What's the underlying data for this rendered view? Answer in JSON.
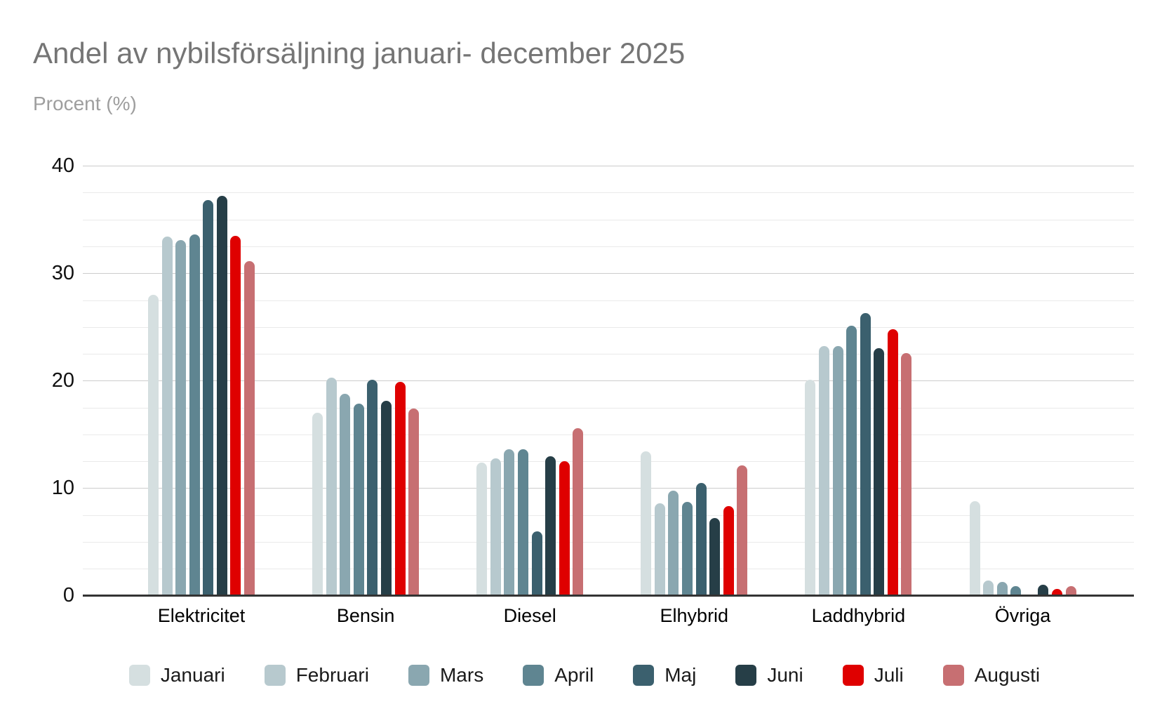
{
  "chart_data": {
    "type": "bar",
    "title": "Andel av nybilsförsäljning januari- december 2025",
    "subtitle": "Procent (%)",
    "ylabel": "Procent (%)",
    "xlabel": "",
    "categories": [
      "Elektricitet",
      "Bensin",
      "Diesel",
      "Elhybrid",
      "Laddhybrid",
      "Övriga"
    ],
    "series": [
      {
        "name": "Januari",
        "color": "#d5dfe0",
        "values": [
          28.0,
          17.0,
          12.4,
          13.4,
          20.1,
          8.8
        ]
      },
      {
        "name": "Februari",
        "color": "#b7c9ce",
        "values": [
          33.4,
          20.3,
          12.8,
          8.6,
          23.2,
          1.4
        ]
      },
      {
        "name": "Mars",
        "color": "#8aa7b0",
        "values": [
          33.1,
          18.8,
          13.6,
          9.8,
          23.2,
          1.3
        ]
      },
      {
        "name": "April",
        "color": "#5f8591",
        "values": [
          33.6,
          17.9,
          13.6,
          8.7,
          25.1,
          0.9
        ]
      },
      {
        "name": "Maj",
        "color": "#3b606e",
        "values": [
          36.8,
          20.1,
          6.0,
          10.5,
          26.3,
          0.0
        ]
      },
      {
        "name": "Juni",
        "color": "#263e47",
        "values": [
          37.2,
          18.1,
          13.0,
          7.2,
          23.0,
          1.0
        ]
      },
      {
        "name": "Juli",
        "color": "#df0000",
        "values": [
          33.5,
          19.9,
          12.5,
          8.3,
          24.8,
          0.6
        ]
      },
      {
        "name": "Augusti",
        "color": "#c76f72",
        "values": [
          31.1,
          17.4,
          15.6,
          12.1,
          22.6,
          0.9
        ]
      }
    ],
    "ylim": [
      0,
      40
    ],
    "yticks": [
      0,
      10,
      20,
      30,
      40
    ],
    "minor_grid_step": 2.5,
    "grid": true,
    "legend_position": "bottom",
    "style": {
      "title_color": "#757575",
      "subtitle_color": "#9e9e9e",
      "grid_major_color": "#cccccc",
      "grid_minor_color": "#eaeaea",
      "baseline_color": "#333333",
      "tick_label_color": "#111111"
    }
  }
}
